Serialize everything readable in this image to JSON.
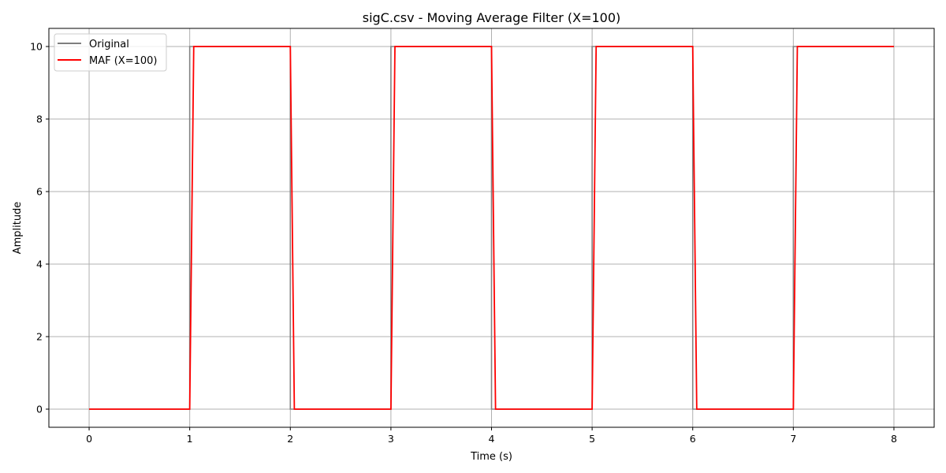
{
  "chart_data": {
    "type": "line",
    "title": "sigC.csv - Moving Average Filter (X=100)",
    "xlabel": "Time (s)",
    "ylabel": "Amplitude",
    "xlim": [
      -0.4,
      8.4
    ],
    "ylim": [
      -0.5,
      10.5
    ],
    "xticks": [
      0,
      1,
      2,
      3,
      4,
      5,
      6,
      7,
      8
    ],
    "yticks": [
      0,
      2,
      4,
      6,
      8,
      10
    ],
    "xtick_labels": [
      "0",
      "1",
      "2",
      "3",
      "4",
      "5",
      "6",
      "7",
      "8"
    ],
    "ytick_labels": [
      "0",
      "2",
      "4",
      "6",
      "8",
      "10"
    ],
    "grid": true,
    "legend_position": "top-left",
    "series": [
      {
        "name": "Original",
        "color": "#7f7f7f",
        "x": [
          0,
          1.0,
          1.0,
          2.0,
          2.0,
          3.0,
          3.0,
          4.0,
          4.0,
          5.0,
          5.0,
          6.0,
          6.0,
          7.0,
          7.0,
          8.0
        ],
        "y": [
          0,
          0,
          10,
          10,
          0,
          0,
          10,
          10,
          0,
          0,
          10,
          10,
          0,
          0,
          10,
          10
        ]
      },
      {
        "name": "MAF (X=100)",
        "color": "#ff0000",
        "x": [
          0,
          1.0,
          1.04,
          2.0,
          2.04,
          3.0,
          3.04,
          4.0,
          4.04,
          5.0,
          5.04,
          6.0,
          6.04,
          7.0,
          7.04,
          8.0
        ],
        "y": [
          0,
          0,
          10,
          10,
          0,
          0,
          10,
          10,
          0,
          0,
          10,
          10,
          0,
          0,
          10,
          10
        ]
      }
    ]
  }
}
